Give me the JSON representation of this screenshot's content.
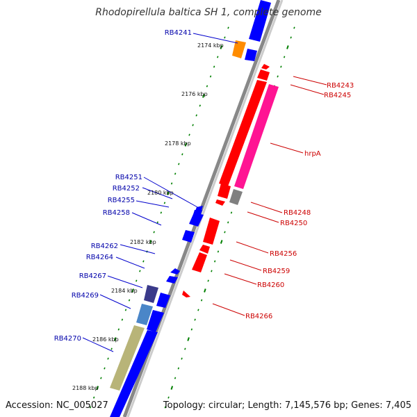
{
  "title": "Rhodopirellula baltica SH 1, complete genome",
  "footer": {
    "accession": "Accession: NC_005027",
    "topology": "Topology: circular; Length: 7,145,576 bp; Genes: 7,405"
  },
  "colors": {
    "forward": "#0000ff",
    "reverse": "#ff0000",
    "backbone": "#888888",
    "ticks": "#008000",
    "label_left": "#0000aa",
    "label_right": "#cc0000"
  },
  "scale_labels": [
    "2174 kbp",
    "2176 kbp",
    "2178 kbp",
    "2180 kbp",
    "2182 kbp",
    "2184 kbp",
    "2186 kbp",
    "2188 kbp"
  ],
  "left_genes": [
    "RB4241",
    "RB4251",
    "RB4252",
    "RB4255",
    "RB4258",
    "RB4262",
    "RB4264",
    "RB4267",
    "RB4269",
    "RB4270"
  ],
  "right_genes": [
    "RB4243",
    "RB4245",
    "hrpA",
    "RB4248",
    "RB4250",
    "RB4256",
    "RB4259",
    "RB4260",
    "RB4266"
  ]
}
